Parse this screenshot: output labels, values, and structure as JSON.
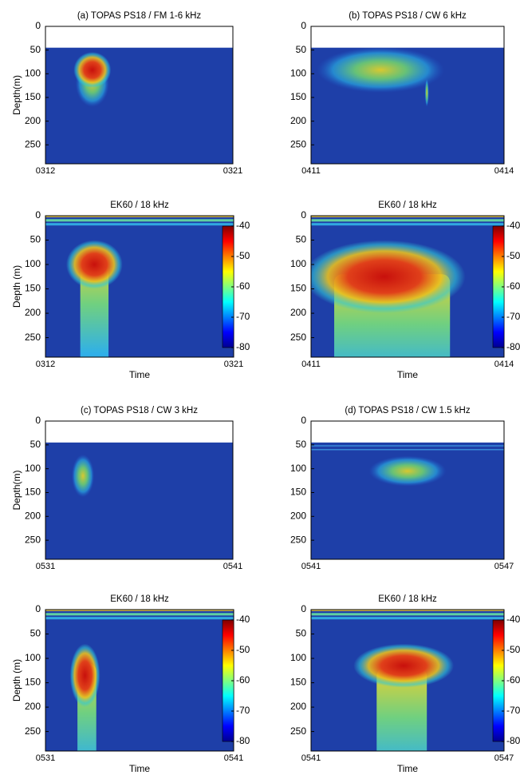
{
  "chart_data": [
    {
      "type": "heatmap",
      "title": "(a)  TOPAS PS18 / FM 1-6 kHz",
      "ylabel": "Depth(m)",
      "xlabels": [
        "0312",
        "0321"
      ],
      "ylim": [
        0,
        290
      ],
      "yticks": [
        0,
        50,
        100,
        150,
        200,
        250
      ]
    },
    {
      "type": "heatmap",
      "title": "(b) TOPAS PS18 / CW 6 kHz",
      "xlabels": [
        "0411",
        "0414"
      ],
      "ylim": [
        0,
        290
      ],
      "yticks": [
        0,
        50,
        100,
        150,
        200,
        250
      ]
    },
    {
      "type": "heatmap",
      "title": "EK60 / 18 kHz",
      "ylabel": "Depth (m)",
      "xlabel": "Time",
      "xlabels": [
        "0312",
        "0321"
      ],
      "ylim": [
        0,
        290
      ],
      "yticks": [
        0,
        50,
        100,
        150,
        200,
        250
      ],
      "clim": [
        -80,
        -40
      ],
      "cticks": [
        -40,
        -50,
        -60,
        -70,
        -80
      ]
    },
    {
      "type": "heatmap",
      "title": "EK60 / 18 kHz",
      "xlabel": "Time",
      "xlabels": [
        "0411",
        "0414"
      ],
      "ylim": [
        0,
        290
      ],
      "yticks": [
        0,
        50,
        100,
        150,
        200,
        250
      ],
      "clim": [
        -80,
        -40
      ],
      "cticks": [
        -40,
        -50,
        -60,
        -70,
        -80
      ]
    },
    {
      "type": "heatmap",
      "title": "(c) TOPAS PS18 / CW 3 kHz",
      "ylabel": "Depth(m)",
      "xlabels": [
        "0531",
        "0541"
      ],
      "ylim": [
        0,
        290
      ],
      "yticks": [
        0,
        50,
        100,
        150,
        200,
        250
      ]
    },
    {
      "type": "heatmap",
      "title": "(d) TOPAS PS18 / CW 1.5 kHz",
      "xlabels": [
        "0541",
        "0547"
      ],
      "ylim": [
        0,
        290
      ],
      "yticks": [
        0,
        50,
        100,
        150,
        200,
        250
      ]
    },
    {
      "type": "heatmap",
      "title": "EK60 / 18 kHz",
      "ylabel": "Depth (m)",
      "xlabel": "Time",
      "xlabels": [
        "0531",
        "0541"
      ],
      "ylim": [
        0,
        290
      ],
      "yticks": [
        0,
        50,
        100,
        150,
        200,
        250
      ],
      "clim": [
        -80,
        -40
      ],
      "cticks": [
        -40,
        -50,
        -60,
        -70,
        -80
      ]
    },
    {
      "type": "heatmap",
      "title": "EK60 / 18 kHz",
      "xlabel": "Time",
      "xlabels": [
        "0541",
        "0547"
      ],
      "ylim": [
        0,
        290
      ],
      "yticks": [
        0,
        50,
        100,
        150,
        200,
        250
      ],
      "clim": [
        -80,
        -40
      ],
      "cticks": [
        -40,
        -50,
        -60,
        -70,
        -80
      ]
    }
  ]
}
